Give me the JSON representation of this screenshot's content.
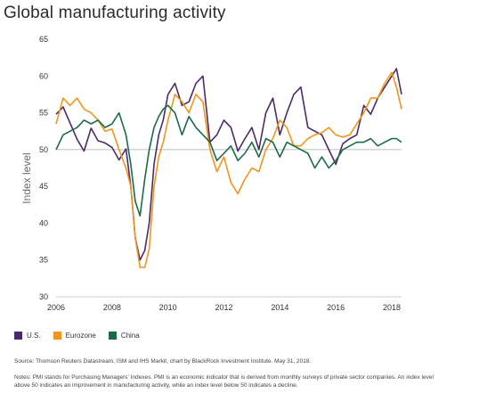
{
  "title": "Global manufacturing activity",
  "colors": {
    "us": "#4b2a6b",
    "eurozone": "#f0961e",
    "china": "#1b6b47",
    "reference": "#aaaaaa"
  },
  "chart_data": {
    "type": "line",
    "title": "Global manufacturing activity",
    "ylabel": "Index level",
    "xlabel": "",
    "ylim": [
      30,
      65
    ],
    "xlim": [
      2006,
      2018.35
    ],
    "x_ticks": [
      "2006",
      "2008",
      "2010",
      "2012",
      "2014",
      "2016",
      "2018"
    ],
    "y_ticks": [
      "30",
      "35",
      "40",
      "45",
      "50",
      "55",
      "60",
      "65"
    ],
    "reference_line": 50,
    "legend_position": "bottom-left",
    "grid": false,
    "series": [
      {
        "name": "U.S.",
        "color": "#4b2a6b",
        "points": [
          [
            2006.0,
            54.8
          ],
          [
            2006.25,
            55.8
          ],
          [
            2006.5,
            53.6
          ],
          [
            2006.75,
            51.4
          ],
          [
            2007.0,
            49.8
          ],
          [
            2007.25,
            52.9
          ],
          [
            2007.5,
            51.2
          ],
          [
            2007.75,
            50.9
          ],
          [
            2008.0,
            50.3
          ],
          [
            2008.25,
            48.6
          ],
          [
            2008.5,
            50.1
          ],
          [
            2008.67,
            45.0
          ],
          [
            2008.83,
            38.0
          ],
          [
            2009.0,
            35.0
          ],
          [
            2009.17,
            36.3
          ],
          [
            2009.33,
            40.0
          ],
          [
            2009.5,
            48.0
          ],
          [
            2009.67,
            52.0
          ],
          [
            2009.83,
            54.0
          ],
          [
            2010.0,
            57.5
          ],
          [
            2010.25,
            59.0
          ],
          [
            2010.5,
            56.0
          ],
          [
            2010.75,
            56.5
          ],
          [
            2011.0,
            59.0
          ],
          [
            2011.25,
            60.0
          ],
          [
            2011.5,
            51.0
          ],
          [
            2011.75,
            52.0
          ],
          [
            2012.0,
            54.0
          ],
          [
            2012.25,
            53.0
          ],
          [
            2012.5,
            49.8
          ],
          [
            2012.75,
            51.5
          ],
          [
            2013.0,
            53.0
          ],
          [
            2013.25,
            50.0
          ],
          [
            2013.5,
            55.0
          ],
          [
            2013.75,
            57.0
          ],
          [
            2014.0,
            52.0
          ],
          [
            2014.25,
            55.0
          ],
          [
            2014.5,
            57.5
          ],
          [
            2014.75,
            58.5
          ],
          [
            2015.0,
            53.0
          ],
          [
            2015.25,
            52.5
          ],
          [
            2015.5,
            52.0
          ],
          [
            2015.75,
            50.0
          ],
          [
            2016.0,
            48.0
          ],
          [
            2016.25,
            50.8
          ],
          [
            2016.5,
            51.5
          ],
          [
            2016.75,
            52.0
          ],
          [
            2017.0,
            56.0
          ],
          [
            2017.25,
            54.8
          ],
          [
            2017.5,
            57.0
          ],
          [
            2017.75,
            58.5
          ],
          [
            2018.0,
            60.0
          ],
          [
            2018.17,
            61.0
          ],
          [
            2018.35,
            57.5
          ]
        ]
      },
      {
        "name": "Eurozone",
        "color": "#f0961e",
        "points": [
          [
            2006.0,
            53.5
          ],
          [
            2006.25,
            57.0
          ],
          [
            2006.5,
            56.0
          ],
          [
            2006.75,
            57.0
          ],
          [
            2007.0,
            55.5
          ],
          [
            2007.25,
            55.0
          ],
          [
            2007.5,
            54.0
          ],
          [
            2007.75,
            52.5
          ],
          [
            2008.0,
            52.8
          ],
          [
            2008.25,
            50.0
          ],
          [
            2008.5,
            47.5
          ],
          [
            2008.67,
            45.0
          ],
          [
            2008.83,
            38.0
          ],
          [
            2009.0,
            34.0
          ],
          [
            2009.17,
            34.0
          ],
          [
            2009.33,
            36.5
          ],
          [
            2009.5,
            45.0
          ],
          [
            2009.67,
            49.0
          ],
          [
            2009.83,
            51.0
          ],
          [
            2010.0,
            54.0
          ],
          [
            2010.25,
            57.5
          ],
          [
            2010.5,
            56.5
          ],
          [
            2010.75,
            55.0
          ],
          [
            2011.0,
            57.5
          ],
          [
            2011.25,
            56.5
          ],
          [
            2011.5,
            50.0
          ],
          [
            2011.75,
            47.0
          ],
          [
            2012.0,
            49.0
          ],
          [
            2012.25,
            45.5
          ],
          [
            2012.5,
            44.0
          ],
          [
            2012.75,
            46.0
          ],
          [
            2013.0,
            47.5
          ],
          [
            2013.25,
            47.0
          ],
          [
            2013.5,
            50.0
          ],
          [
            2013.75,
            51.5
          ],
          [
            2014.0,
            54.0
          ],
          [
            2014.25,
            53.0
          ],
          [
            2014.5,
            50.5
          ],
          [
            2014.75,
            50.5
          ],
          [
            2015.0,
            51.5
          ],
          [
            2015.25,
            52.0
          ],
          [
            2015.5,
            52.3
          ],
          [
            2015.75,
            53.0
          ],
          [
            2016.0,
            52.0
          ],
          [
            2016.25,
            51.7
          ],
          [
            2016.5,
            52.0
          ],
          [
            2016.75,
            53.5
          ],
          [
            2017.0,
            55.0
          ],
          [
            2017.25,
            57.0
          ],
          [
            2017.5,
            57.0
          ],
          [
            2017.75,
            59.0
          ],
          [
            2018.0,
            60.5
          ],
          [
            2018.17,
            58.5
          ],
          [
            2018.35,
            55.5
          ]
        ]
      },
      {
        "name": "China",
        "color": "#1b6b47",
        "points": [
          [
            2006.0,
            50.0
          ],
          [
            2006.25,
            52.0
          ],
          [
            2006.5,
            52.5
          ],
          [
            2006.75,
            53.0
          ],
          [
            2007.0,
            54.0
          ],
          [
            2007.25,
            53.5
          ],
          [
            2007.5,
            54.0
          ],
          [
            2007.75,
            53.0
          ],
          [
            2008.0,
            53.5
          ],
          [
            2008.25,
            55.0
          ],
          [
            2008.5,
            52.0
          ],
          [
            2008.67,
            48.0
          ],
          [
            2008.83,
            43.0
          ],
          [
            2009.0,
            41.0
          ],
          [
            2009.17,
            46.0
          ],
          [
            2009.33,
            50.0
          ],
          [
            2009.5,
            53.0
          ],
          [
            2009.67,
            54.5
          ],
          [
            2009.83,
            55.5
          ],
          [
            2010.0,
            56.0
          ],
          [
            2010.25,
            55.0
          ],
          [
            2010.5,
            52.0
          ],
          [
            2010.75,
            54.5
          ],
          [
            2011.0,
            53.0
          ],
          [
            2011.25,
            52.0
          ],
          [
            2011.5,
            51.0
          ],
          [
            2011.75,
            48.5
          ],
          [
            2012.0,
            49.5
          ],
          [
            2012.25,
            50.5
          ],
          [
            2012.5,
            48.5
          ],
          [
            2012.75,
            49.5
          ],
          [
            2013.0,
            51.0
          ],
          [
            2013.25,
            49.0
          ],
          [
            2013.5,
            51.5
          ],
          [
            2013.75,
            51.0
          ],
          [
            2014.0,
            49.0
          ],
          [
            2014.25,
            51.0
          ],
          [
            2014.5,
            50.5
          ],
          [
            2014.75,
            50.0
          ],
          [
            2015.0,
            49.5
          ],
          [
            2015.25,
            47.5
          ],
          [
            2015.5,
            49.0
          ],
          [
            2015.75,
            47.5
          ],
          [
            2016.0,
            48.5
          ],
          [
            2016.25,
            50.0
          ],
          [
            2016.5,
            50.5
          ],
          [
            2016.75,
            51.0
          ],
          [
            2017.0,
            51.0
          ],
          [
            2017.25,
            51.5
          ],
          [
            2017.5,
            50.5
          ],
          [
            2017.75,
            51.0
          ],
          [
            2018.0,
            51.5
          ],
          [
            2018.17,
            51.5
          ],
          [
            2018.35,
            51.0
          ]
        ]
      }
    ]
  },
  "source_text": "Source: Thomson Reuters Datastream, ISM and IHS Markit, chart by BlackRock Investment Institute. May 31, 2018.",
  "notes_text": "Notes: PMI stands for Purchasing Managers' Indexes. PMI is an economic indicator that is derived from monthly surveys of private sector companies. An index level above 50 indicates an improvement in manufacturing activity, while an index level below 50 indicates a decline."
}
